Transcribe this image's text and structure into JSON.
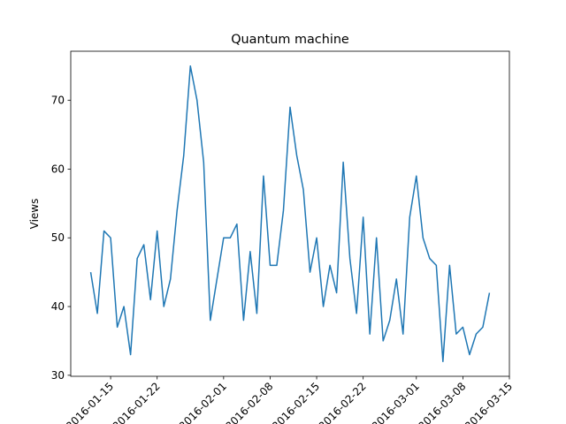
{
  "chart_data": {
    "type": "line",
    "title": "Quantum machine",
    "ylabel": "Views",
    "x": [
      "2016-01-12",
      "2016-01-13",
      "2016-01-14",
      "2016-01-15",
      "2016-01-16",
      "2016-01-17",
      "2016-01-18",
      "2016-01-19",
      "2016-01-20",
      "2016-01-21",
      "2016-01-22",
      "2016-01-23",
      "2016-01-24",
      "2016-01-25",
      "2016-01-26",
      "2016-01-27",
      "2016-01-28",
      "2016-01-29",
      "2016-01-30",
      "2016-01-31",
      "2016-02-01",
      "2016-02-02",
      "2016-02-03",
      "2016-02-04",
      "2016-02-05",
      "2016-02-06",
      "2016-02-07",
      "2016-02-08",
      "2016-02-09",
      "2016-02-10",
      "2016-02-11",
      "2016-02-12",
      "2016-02-13",
      "2016-02-14",
      "2016-02-15",
      "2016-02-16",
      "2016-02-17",
      "2016-02-18",
      "2016-02-19",
      "2016-02-20",
      "2016-02-21",
      "2016-02-22",
      "2016-02-23",
      "2016-02-24",
      "2016-02-25",
      "2016-02-26",
      "2016-02-27",
      "2016-02-28",
      "2016-02-29",
      "2016-03-01",
      "2016-03-02",
      "2016-03-03",
      "2016-03-04",
      "2016-03-05",
      "2016-03-06",
      "2016-03-07",
      "2016-03-08",
      "2016-03-09",
      "2016-03-10",
      "2016-03-11",
      "2016-03-12"
    ],
    "series": [
      {
        "color": "#1f77b4",
        "values": [
          45,
          39,
          51,
          50,
          37,
          40,
          33,
          47,
          49,
          41,
          51,
          40,
          44,
          54,
          62,
          75,
          70,
          61,
          38,
          44,
          50,
          50,
          52,
          38,
          48,
          39,
          59,
          46,
          46,
          54,
          69,
          62,
          57,
          45,
          50,
          40,
          46,
          42,
          61,
          47,
          39,
          53,
          36,
          50,
          35,
          38,
          44,
          36,
          53,
          59,
          50,
          47,
          46,
          32,
          46,
          36,
          37,
          33,
          36,
          37,
          42
        ]
      }
    ],
    "xlim": [
      "2016-01-09",
      "2016-03-15"
    ],
    "xticks": [
      "2016-01-15",
      "2016-01-22",
      "2016-02-01",
      "2016-02-08",
      "2016-02-15",
      "2016-02-22",
      "2016-03-01",
      "2016-03-08",
      "2016-03-15"
    ],
    "ylim": [
      29.85,
      77.15
    ],
    "yticks": [
      30,
      40,
      50,
      60,
      70
    ]
  }
}
